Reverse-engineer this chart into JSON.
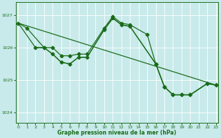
{
  "xlabel": "Graphe pression niveau de la mer (hPa)",
  "ylim": [
    1023.7,
    1027.4
  ],
  "xlim": [
    -0.3,
    23.3
  ],
  "yticks": [
    1024,
    1025,
    1026,
    1027
  ],
  "xticks": [
    0,
    1,
    2,
    3,
    4,
    5,
    6,
    7,
    8,
    9,
    10,
    11,
    12,
    13,
    14,
    15,
    16,
    17,
    18,
    19,
    20,
    21,
    22,
    23
  ],
  "bg_color": "#c8eaea",
  "grid_color": "#ffffff",
  "line_color": "#1a6b1a",
  "line1_x": [
    0,
    1,
    3,
    4,
    5,
    6,
    7,
    8,
    10,
    11,
    12,
    13,
    15,
    16,
    17,
    18,
    19,
    20,
    22,
    23
  ],
  "line1_y": [
    1026.75,
    1026.6,
    1026.0,
    1026.0,
    1025.75,
    1025.75,
    1025.8,
    1025.8,
    1026.6,
    1026.95,
    1026.75,
    1026.7,
    1026.4,
    1025.5,
    1024.8,
    1024.55,
    1024.55,
    1024.55,
    1024.9,
    1024.85
  ],
  "line2_x": [
    0,
    23
  ],
  "line2_y": [
    1026.75,
    1024.85
  ],
  "line3_x": [
    2,
    3,
    4,
    5,
    6,
    7,
    8,
    10,
    11,
    12,
    13,
    16,
    17,
    18,
    19,
    20,
    22,
    23
  ],
  "line3_y": [
    1026.0,
    1026.0,
    1025.8,
    1025.55,
    1025.5,
    1025.7,
    1025.7,
    1026.55,
    1026.9,
    1026.7,
    1026.65,
    1025.5,
    1024.8,
    1024.55,
    1024.55,
    1024.55,
    1024.9,
    1024.85
  ],
  "line4_x": [
    0,
    2,
    3,
    4,
    5,
    6,
    7,
    8,
    10,
    11,
    12,
    13,
    16,
    17,
    18,
    19,
    20,
    22,
    23
  ],
  "line4_y": [
    1026.75,
    1026.0,
    1026.0,
    1025.8,
    1025.55,
    1025.5,
    1025.7,
    1025.7,
    1026.55,
    1026.9,
    1026.7,
    1026.65,
    1025.5,
    1024.8,
    1024.55,
    1024.55,
    1024.55,
    1024.9,
    1024.85
  ]
}
